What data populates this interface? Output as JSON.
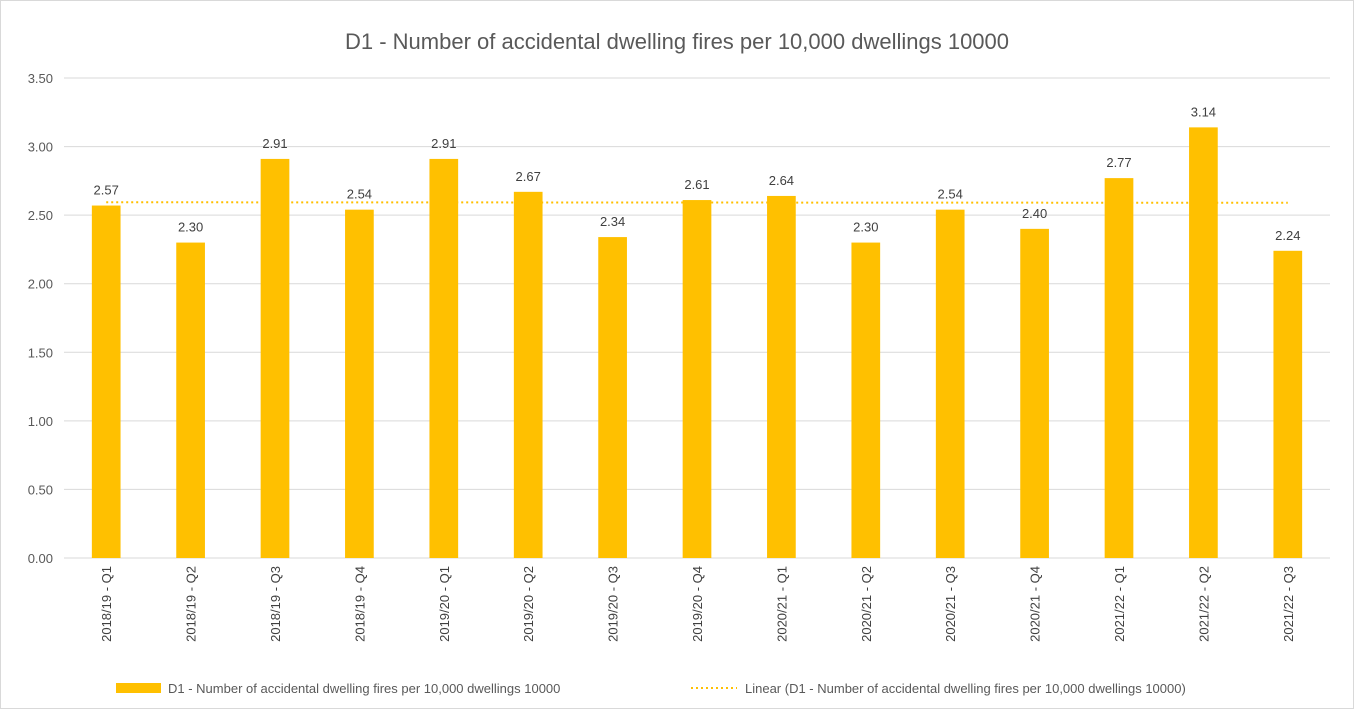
{
  "chart_data": {
    "type": "bar",
    "title": "D1 - Number of accidental dwelling fires per 10,000 dwellings 10000",
    "xlabel": "",
    "ylabel": "",
    "categories": [
      "2018/19 - Q1",
      "2018/19 - Q2",
      "2018/19 - Q3",
      "2018/19 - Q4",
      "2019/20 - Q1",
      "2019/20 - Q2",
      "2019/20 - Q3",
      "2019/20 - Q4",
      "2020/21 - Q1",
      "2020/21 - Q2",
      "2020/21 - Q3",
      "2020/21 - Q4",
      "2021/22 - Q1",
      "2021/22 - Q2",
      "2021/22 - Q3"
    ],
    "series": [
      {
        "name": "D1 - Number of accidental dwelling fires per 10,000 dwellings 10000",
        "values": [
          2.57,
          2.3,
          2.91,
          2.54,
          2.91,
          2.67,
          2.34,
          2.61,
          2.64,
          2.3,
          2.54,
          2.4,
          2.77,
          3.14,
          2.24
        ],
        "color": "#FFC000"
      }
    ],
    "data_labels": [
      "2.57",
      "2.30",
      "2.91",
      "2.54",
      "2.91",
      "2.67",
      "2.34",
      "2.61",
      "2.64",
      "2.30",
      "2.54",
      "2.40",
      "2.77",
      "3.14",
      "2.24"
    ],
    "trendline": {
      "name": "Linear (D1 - Number of accidental dwelling fires per 10,000 dwellings 10000)",
      "type": "linear",
      "style": "dotted",
      "color": "#FFC000"
    },
    "ylim": [
      0,
      3.5
    ],
    "yticks": [
      "0.00",
      "0.50",
      "1.00",
      "1.50",
      "2.00",
      "2.50",
      "3.00",
      "3.50"
    ],
    "ytick_values": [
      0,
      0.5,
      1.0,
      1.5,
      2.0,
      2.5,
      3.0,
      3.5
    ],
    "grid": true,
    "legend_position": "bottom",
    "colors": {
      "bar": "#FFC000",
      "grid": "#d9d9d9",
      "text": "#595959"
    }
  }
}
